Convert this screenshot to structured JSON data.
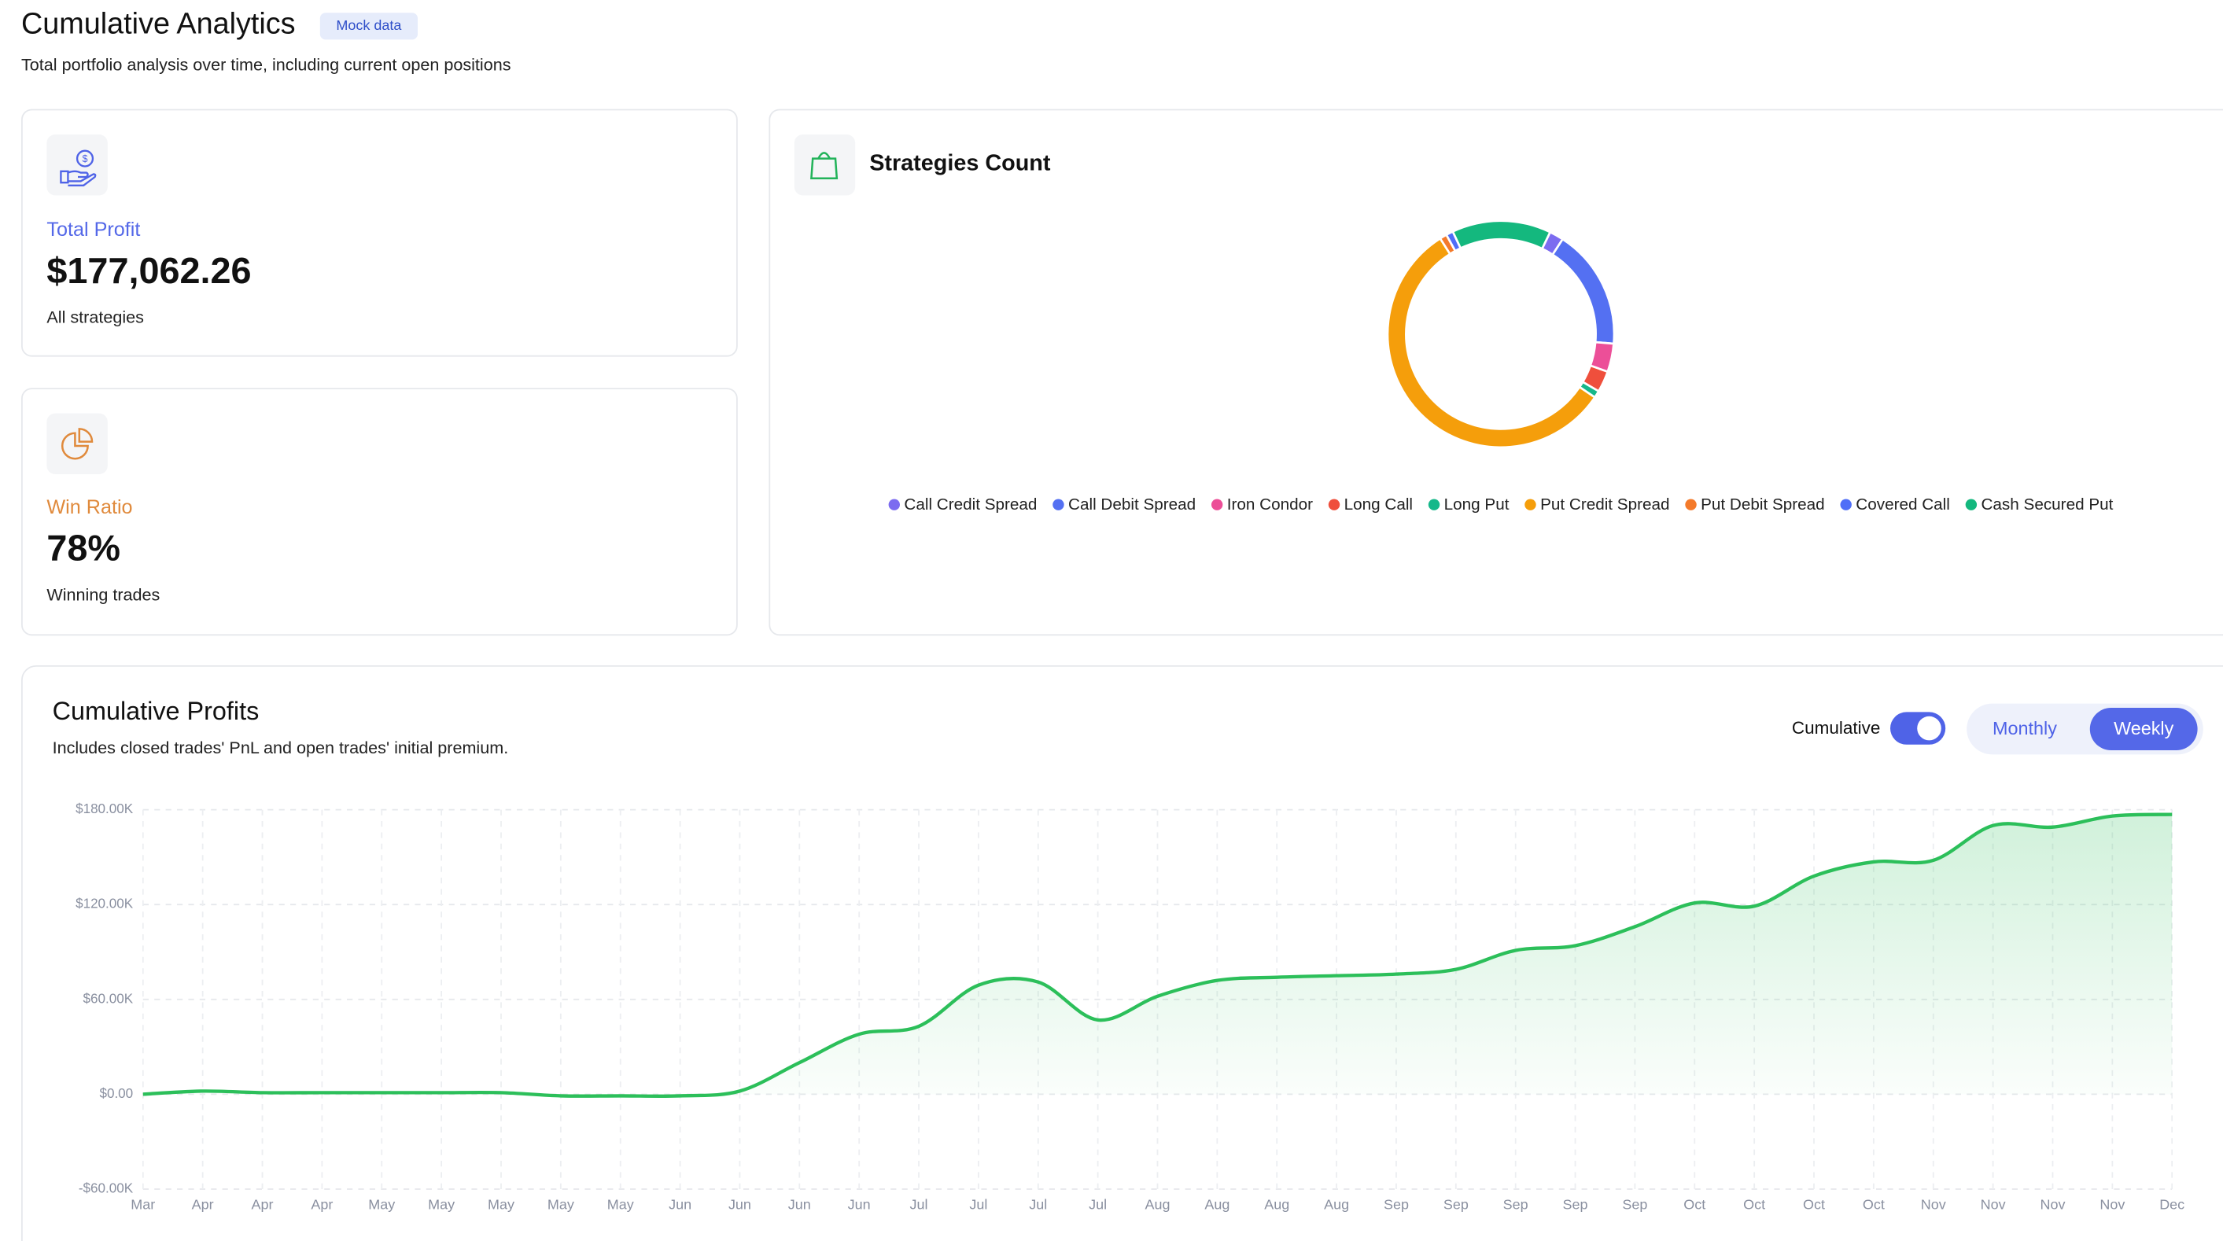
{
  "header": {
    "title": "Cumulative Analytics",
    "badge": "Mock data",
    "subtitle": "Total portfolio analysis over time, including current open positions"
  },
  "stats": [
    {
      "label": "Total Profit",
      "value": "$177,062.26",
      "caption": "All strategies"
    },
    {
      "label": "Win Ratio",
      "value": "78%",
      "caption": "Winning trades"
    }
  ],
  "chart_data": [
    {
      "type": "donut",
      "title": "Strategies Count",
      "series": [
        {
          "name": "Call Credit Spread",
          "color": "#7c6cf0",
          "value": 2
        },
        {
          "name": "Call Debit Spread",
          "color": "#5470f2",
          "value": 17
        },
        {
          "name": "Iron Condor",
          "color": "#ec4f98",
          "value": 4
        },
        {
          "name": "Long Call",
          "color": "#ef4f3c",
          "value": 3
        },
        {
          "name": "Long Put",
          "color": "#16b88a",
          "value": 1
        },
        {
          "name": "Put Credit Spread",
          "color": "#f59e0b",
          "value": 56
        },
        {
          "name": "Put Debit Spread",
          "color": "#f47a2a",
          "value": 1
        },
        {
          "name": "Covered Call",
          "color": "#4f6ef7",
          "value": 1
        },
        {
          "name": "Cash Secured Put",
          "color": "#14b87e",
          "value": 14
        }
      ]
    },
    {
      "type": "area",
      "title": "Cumulative Profits",
      "subtitle": "Includes closed trades' PnL and open trades' initial premium.",
      "controls": {
        "toggle_label": "Cumulative",
        "toggle_on": true,
        "options": [
          "Monthly",
          "Weekly"
        ],
        "selected": "Weekly"
      },
      "color": "#2cbf5a",
      "grid": true,
      "categories": [
        "Mar",
        "Apr",
        "Apr",
        "Apr",
        "May",
        "May",
        "May",
        "May",
        "May",
        "Jun",
        "Jun",
        "Jun",
        "Jun",
        "Jul",
        "Jul",
        "Jul",
        "Jul",
        "Aug",
        "Aug",
        "Aug",
        "Aug",
        "Sep",
        "Sep",
        "Sep",
        "Sep",
        "Sep",
        "Oct",
        "Oct",
        "Oct",
        "Oct",
        "Nov",
        "Nov",
        "Nov",
        "Nov",
        "Dec"
      ],
      "values": [
        0,
        2000,
        1000,
        1000,
        1000,
        1000,
        1000,
        -1000,
        -1000,
        -1000,
        2000,
        20000,
        38000,
        43000,
        69000,
        71000,
        47000,
        62000,
        72000,
        74000,
        75000,
        76000,
        79000,
        91000,
        94000,
        106000,
        121000,
        119000,
        138000,
        147000,
        148000,
        170000,
        169000,
        176000,
        177000
      ],
      "ylim": [
        -60000,
        180000
      ],
      "yticks": [
        {
          "value": -60000,
          "label": "-$60.00K"
        },
        {
          "value": 0,
          "label": "$0.00"
        },
        {
          "value": 60000,
          "label": "$60.00K"
        },
        {
          "value": 120000,
          "label": "$120.00K"
        },
        {
          "value": 180000,
          "label": "$180.00K"
        }
      ]
    }
  ]
}
